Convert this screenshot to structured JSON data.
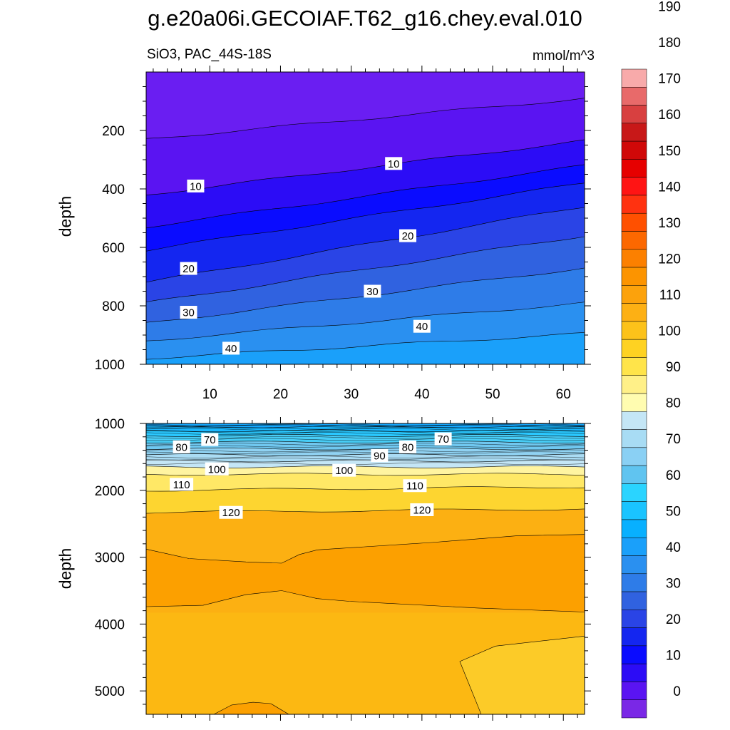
{
  "title": "g.e20a06i.GECOIAF.T62_g16.chey.eval.010",
  "variable_label": "SiO3, PAC_44S-18S",
  "units_label": "mmol/m^3",
  "colorbar": {
    "labels": [
      "0",
      "10",
      "20",
      "30",
      "40",
      "50",
      "60",
      "70",
      "80",
      "90",
      "100",
      "110",
      "120",
      "130",
      "140",
      "150",
      "160",
      "170",
      "180",
      "190"
    ],
    "colors": [
      "#7a28e6",
      "#5a14f2",
      "#2c0cf6",
      "#0a0cff",
      "#1426f0",
      "#2a44e6",
      "#3062e0",
      "#2e7ce8",
      "#2a90f0",
      "#1aa0fa",
      "#08b0ff",
      "#1ac4ff",
      "#2ad4ff",
      "#60c4f0",
      "#8ad0f4",
      "#a8dcf4",
      "#c4e6f6",
      "#fffcb0",
      "#fff088",
      "#ffe44a",
      "#fed222",
      "#fcc21a",
      "#fdb014",
      "#fca20c",
      "#fc9400",
      "#fc8000",
      "#fc6800",
      "#ff5000",
      "#ff3210",
      "#ff1414",
      "#e60000",
      "#d00808",
      "#c81818",
      "#d84040",
      "#e86a6a",
      "#f8aaaa"
    ]
  },
  "chart_data": [
    {
      "type": "contour",
      "panel": "upper",
      "ylabel": "depth",
      "xlim": [
        1,
        63
      ],
      "ylim": [
        1000,
        0
      ],
      "xticks": [
        10,
        20,
        30,
        40,
        50,
        60
      ],
      "yticks": [
        200,
        400,
        600,
        800,
        1000
      ],
      "contours": [
        {
          "level": 5,
          "left": 230,
          "right": 90,
          "fill": "#5a14f2"
        },
        {
          "level": 10,
          "left": 420,
          "right": 235,
          "fill": "#2c0cf6"
        },
        {
          "level": 15,
          "left": 530,
          "right": 320,
          "fill": "#0a0cff"
        },
        {
          "level": 20,
          "left": 610,
          "right": 380,
          "fill": "#1426f0"
        },
        {
          "level": 25,
          "left": 720,
          "right": 460,
          "fill": "#2a44e6"
        },
        {
          "level": 30,
          "left": 790,
          "right": 560,
          "fill": "#3062e0"
        },
        {
          "level": 35,
          "left": 860,
          "right": 670,
          "fill": "#2e7ce8"
        },
        {
          "level": 40,
          "left": 920,
          "right": 790,
          "fill": "#2a90f0"
        },
        {
          "level": 45,
          "left": 980,
          "right": 895,
          "fill": "#1aa0fa"
        }
      ],
      "top_fill": "#6a1ef2",
      "line_labels": [
        {
          "text": "10",
          "x": 8,
          "y": 390
        },
        {
          "text": "10",
          "x": 36,
          "y": 313
        },
        {
          "text": "20",
          "x": 7,
          "y": 672
        },
        {
          "text": "20",
          "x": 38,
          "y": 560
        },
        {
          "text": "30",
          "x": 7,
          "y": 822
        },
        {
          "text": "30",
          "x": 33,
          "y": 750
        },
        {
          "text": "40",
          "x": 13,
          "y": 945
        },
        {
          "text": "40",
          "x": 40,
          "y": 870
        }
      ]
    },
    {
      "type": "contour",
      "panel": "lower",
      "ylabel": "depth",
      "xlim": [
        1,
        63
      ],
      "ylim": [
        5350,
        1000
      ],
      "yticks": [
        1000,
        2000,
        3000,
        4000,
        5000
      ],
      "layers": [
        {
          "level": 55,
          "depth": 1050,
          "fill": "#1ab8ff"
        },
        {
          "level": 60,
          "depth": 1110,
          "fill": "#2ac8ff"
        },
        {
          "level": 65,
          "depth": 1180,
          "fill": "#48cdf6"
        },
        {
          "level": 70,
          "depth": 1280,
          "fill": "#70c8f0"
        },
        {
          "level": 75,
          "depth": 1380,
          "fill": "#90d2f2"
        },
        {
          "level": 80,
          "depth": 1470,
          "fill": "#aadcf4"
        },
        {
          "level": 85,
          "depth": 1560,
          "fill": "#c4e6f6"
        },
        {
          "level": 90,
          "depth": 1650,
          "fill": "#fff4a0"
        },
        {
          "level": 100,
          "depth": 1760,
          "fill": "#ffe866"
        },
        {
          "level": 110,
          "depth": 2000,
          "fill": "#fdd530"
        },
        {
          "level": 120,
          "depth": 2330,
          "fill": "#fcc220"
        }
      ],
      "deep_regions": [
        {
          "level": 125,
          "description": "upper orange band",
          "fill": "#fcb012"
        },
        {
          "level": 130,
          "description": "deep orange core",
          "fill": "#fca000"
        },
        {
          "level": 125,
          "description": "abyssal",
          "fill": "#fcb812"
        },
        {
          "level": 120,
          "description": "southeast yellow patch",
          "fill": "#fccb28"
        },
        {
          "level": 130,
          "description": "bottom orange bump",
          "fill": "#fca000"
        }
      ],
      "line_labels": [
        {
          "text": "70",
          "x": 10,
          "y": 1240
        },
        {
          "text": "80",
          "x": 6,
          "y": 1350
        },
        {
          "text": "100",
          "x": 11,
          "y": 1680
        },
        {
          "text": "110",
          "x": 6,
          "y": 1910
        },
        {
          "text": "120",
          "x": 13,
          "y": 2330
        },
        {
          "text": "70",
          "x": 43,
          "y": 1230
        },
        {
          "text": "80",
          "x": 38,
          "y": 1350
        },
        {
          "text": "90",
          "x": 34,
          "y": 1480
        },
        {
          "text": "100",
          "x": 29,
          "y": 1700
        },
        {
          "text": "110",
          "x": 39,
          "y": 1930
        },
        {
          "text": "120",
          "x": 40,
          "y": 2290
        }
      ]
    }
  ]
}
